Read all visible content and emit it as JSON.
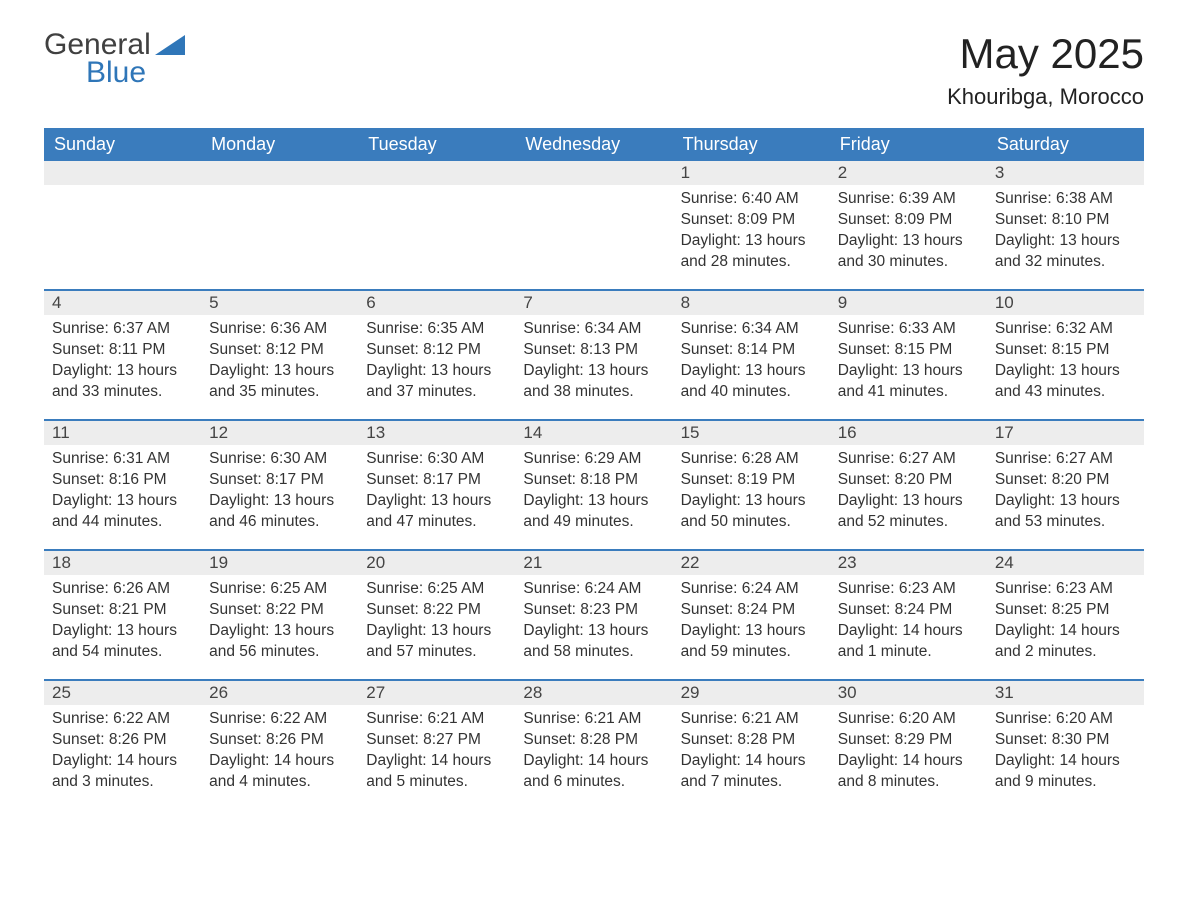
{
  "brand": {
    "name1": "General",
    "name2": "Blue",
    "accent": "#2f76b8",
    "text_color": "#404040"
  },
  "title": "May 2025",
  "subtitle": "Khouribga, Morocco",
  "colors": {
    "header_bg": "#3a7cbd",
    "header_text": "#ffffff",
    "daynum_bg": "#ededed",
    "body_text": "#333333",
    "rule": "#3a7cbd",
    "page_bg": "#ffffff"
  },
  "fonts": {
    "title_size": 42,
    "subtitle_size": 22,
    "header_size": 18,
    "daynum_size": 17,
    "body_size": 15.5
  },
  "columns": [
    "Sunday",
    "Monday",
    "Tuesday",
    "Wednesday",
    "Thursday",
    "Friday",
    "Saturday"
  ],
  "weeks": [
    [
      null,
      null,
      null,
      null,
      {
        "n": "1",
        "sunrise": "6:40 AM",
        "sunset": "8:09 PM",
        "daylight": "13 hours and 28 minutes."
      },
      {
        "n": "2",
        "sunrise": "6:39 AM",
        "sunset": "8:09 PM",
        "daylight": "13 hours and 30 minutes."
      },
      {
        "n": "3",
        "sunrise": "6:38 AM",
        "sunset": "8:10 PM",
        "daylight": "13 hours and 32 minutes."
      }
    ],
    [
      {
        "n": "4",
        "sunrise": "6:37 AM",
        "sunset": "8:11 PM",
        "daylight": "13 hours and 33 minutes."
      },
      {
        "n": "5",
        "sunrise": "6:36 AM",
        "sunset": "8:12 PM",
        "daylight": "13 hours and 35 minutes."
      },
      {
        "n": "6",
        "sunrise": "6:35 AM",
        "sunset": "8:12 PM",
        "daylight": "13 hours and 37 minutes."
      },
      {
        "n": "7",
        "sunrise": "6:34 AM",
        "sunset": "8:13 PM",
        "daylight": "13 hours and 38 minutes."
      },
      {
        "n": "8",
        "sunrise": "6:34 AM",
        "sunset": "8:14 PM",
        "daylight": "13 hours and 40 minutes."
      },
      {
        "n": "9",
        "sunrise": "6:33 AM",
        "sunset": "8:15 PM",
        "daylight": "13 hours and 41 minutes."
      },
      {
        "n": "10",
        "sunrise": "6:32 AM",
        "sunset": "8:15 PM",
        "daylight": "13 hours and 43 minutes."
      }
    ],
    [
      {
        "n": "11",
        "sunrise": "6:31 AM",
        "sunset": "8:16 PM",
        "daylight": "13 hours and 44 minutes."
      },
      {
        "n": "12",
        "sunrise": "6:30 AM",
        "sunset": "8:17 PM",
        "daylight": "13 hours and 46 minutes."
      },
      {
        "n": "13",
        "sunrise": "6:30 AM",
        "sunset": "8:17 PM",
        "daylight": "13 hours and 47 minutes."
      },
      {
        "n": "14",
        "sunrise": "6:29 AM",
        "sunset": "8:18 PM",
        "daylight": "13 hours and 49 minutes."
      },
      {
        "n": "15",
        "sunrise": "6:28 AM",
        "sunset": "8:19 PM",
        "daylight": "13 hours and 50 minutes."
      },
      {
        "n": "16",
        "sunrise": "6:27 AM",
        "sunset": "8:20 PM",
        "daylight": "13 hours and 52 minutes."
      },
      {
        "n": "17",
        "sunrise": "6:27 AM",
        "sunset": "8:20 PM",
        "daylight": "13 hours and 53 minutes."
      }
    ],
    [
      {
        "n": "18",
        "sunrise": "6:26 AM",
        "sunset": "8:21 PM",
        "daylight": "13 hours and 54 minutes."
      },
      {
        "n": "19",
        "sunrise": "6:25 AM",
        "sunset": "8:22 PM",
        "daylight": "13 hours and 56 minutes."
      },
      {
        "n": "20",
        "sunrise": "6:25 AM",
        "sunset": "8:22 PM",
        "daylight": "13 hours and 57 minutes."
      },
      {
        "n": "21",
        "sunrise": "6:24 AM",
        "sunset": "8:23 PM",
        "daylight": "13 hours and 58 minutes."
      },
      {
        "n": "22",
        "sunrise": "6:24 AM",
        "sunset": "8:24 PM",
        "daylight": "13 hours and 59 minutes."
      },
      {
        "n": "23",
        "sunrise": "6:23 AM",
        "sunset": "8:24 PM",
        "daylight": "14 hours and 1 minute."
      },
      {
        "n": "24",
        "sunrise": "6:23 AM",
        "sunset": "8:25 PM",
        "daylight": "14 hours and 2 minutes."
      }
    ],
    [
      {
        "n": "25",
        "sunrise": "6:22 AM",
        "sunset": "8:26 PM",
        "daylight": "14 hours and 3 minutes."
      },
      {
        "n": "26",
        "sunrise": "6:22 AM",
        "sunset": "8:26 PM",
        "daylight": "14 hours and 4 minutes."
      },
      {
        "n": "27",
        "sunrise": "6:21 AM",
        "sunset": "8:27 PM",
        "daylight": "14 hours and 5 minutes."
      },
      {
        "n": "28",
        "sunrise": "6:21 AM",
        "sunset": "8:28 PM",
        "daylight": "14 hours and 6 minutes."
      },
      {
        "n": "29",
        "sunrise": "6:21 AM",
        "sunset": "8:28 PM",
        "daylight": "14 hours and 7 minutes."
      },
      {
        "n": "30",
        "sunrise": "6:20 AM",
        "sunset": "8:29 PM",
        "daylight": "14 hours and 8 minutes."
      },
      {
        "n": "31",
        "sunrise": "6:20 AM",
        "sunset": "8:30 PM",
        "daylight": "14 hours and 9 minutes."
      }
    ]
  ],
  "labels": {
    "sunrise": "Sunrise:",
    "sunset": "Sunset:",
    "daylight": "Daylight:"
  }
}
